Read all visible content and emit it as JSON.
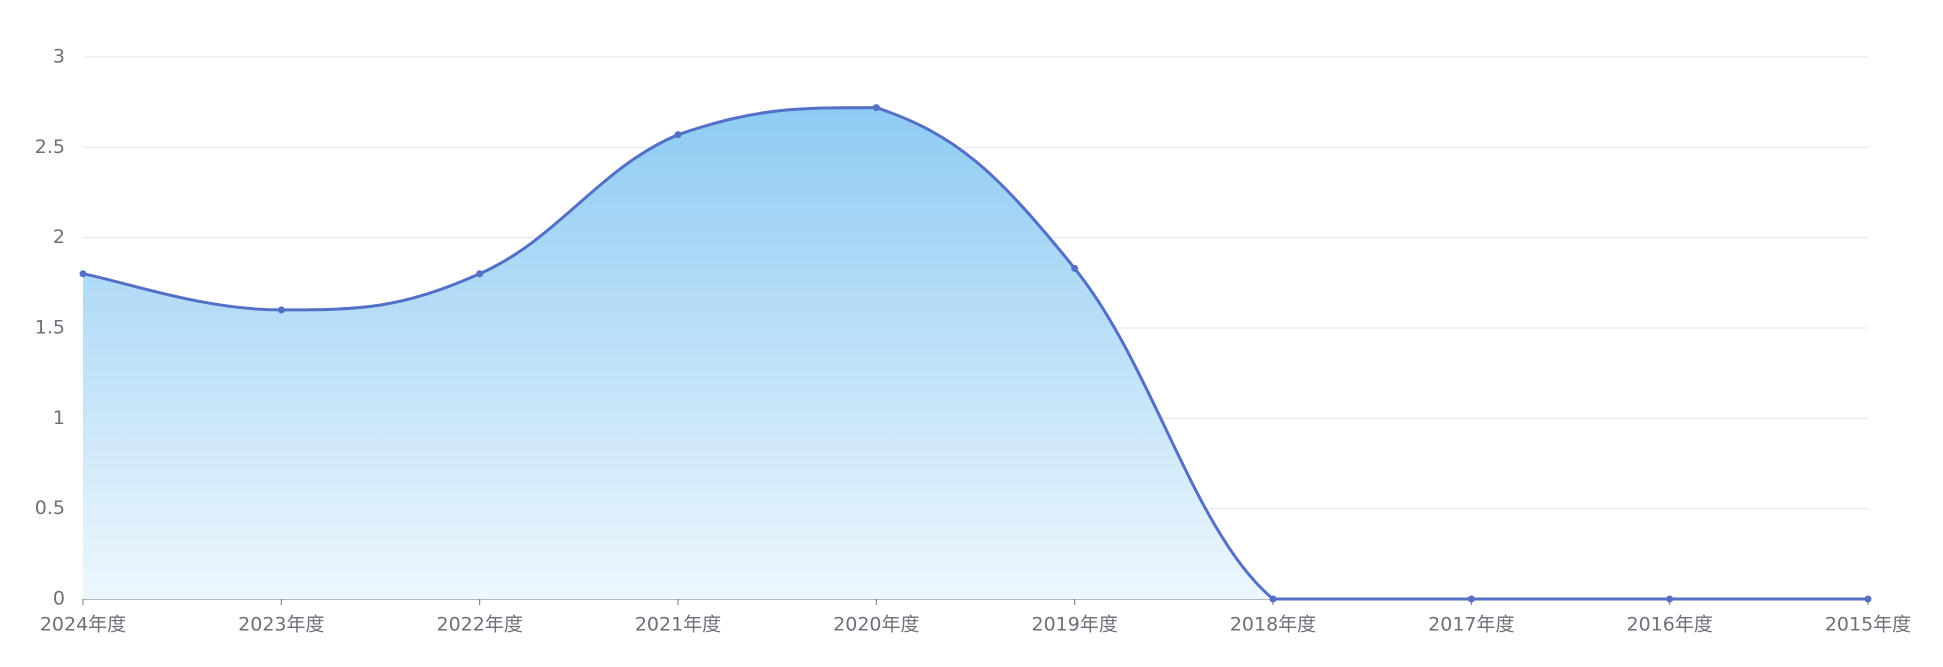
{
  "chart_data": {
    "type": "area",
    "categories": [
      "2024年度",
      "2023年度",
      "2022年度",
      "2021年度",
      "2020年度",
      "2019年度",
      "2018年度",
      "2017年度",
      "2016年度",
      "2015年度"
    ],
    "values": [
      1.8,
      1.6,
      1.8,
      2.57,
      2.72,
      1.83,
      0,
      0,
      0,
      0
    ],
    "color": "#5470c6",
    "ylim": [
      0,
      3
    ],
    "yticks": [
      0,
      0.5,
      1,
      1.5,
      2,
      2.5,
      3
    ],
    "grid": true,
    "smooth": true
  }
}
